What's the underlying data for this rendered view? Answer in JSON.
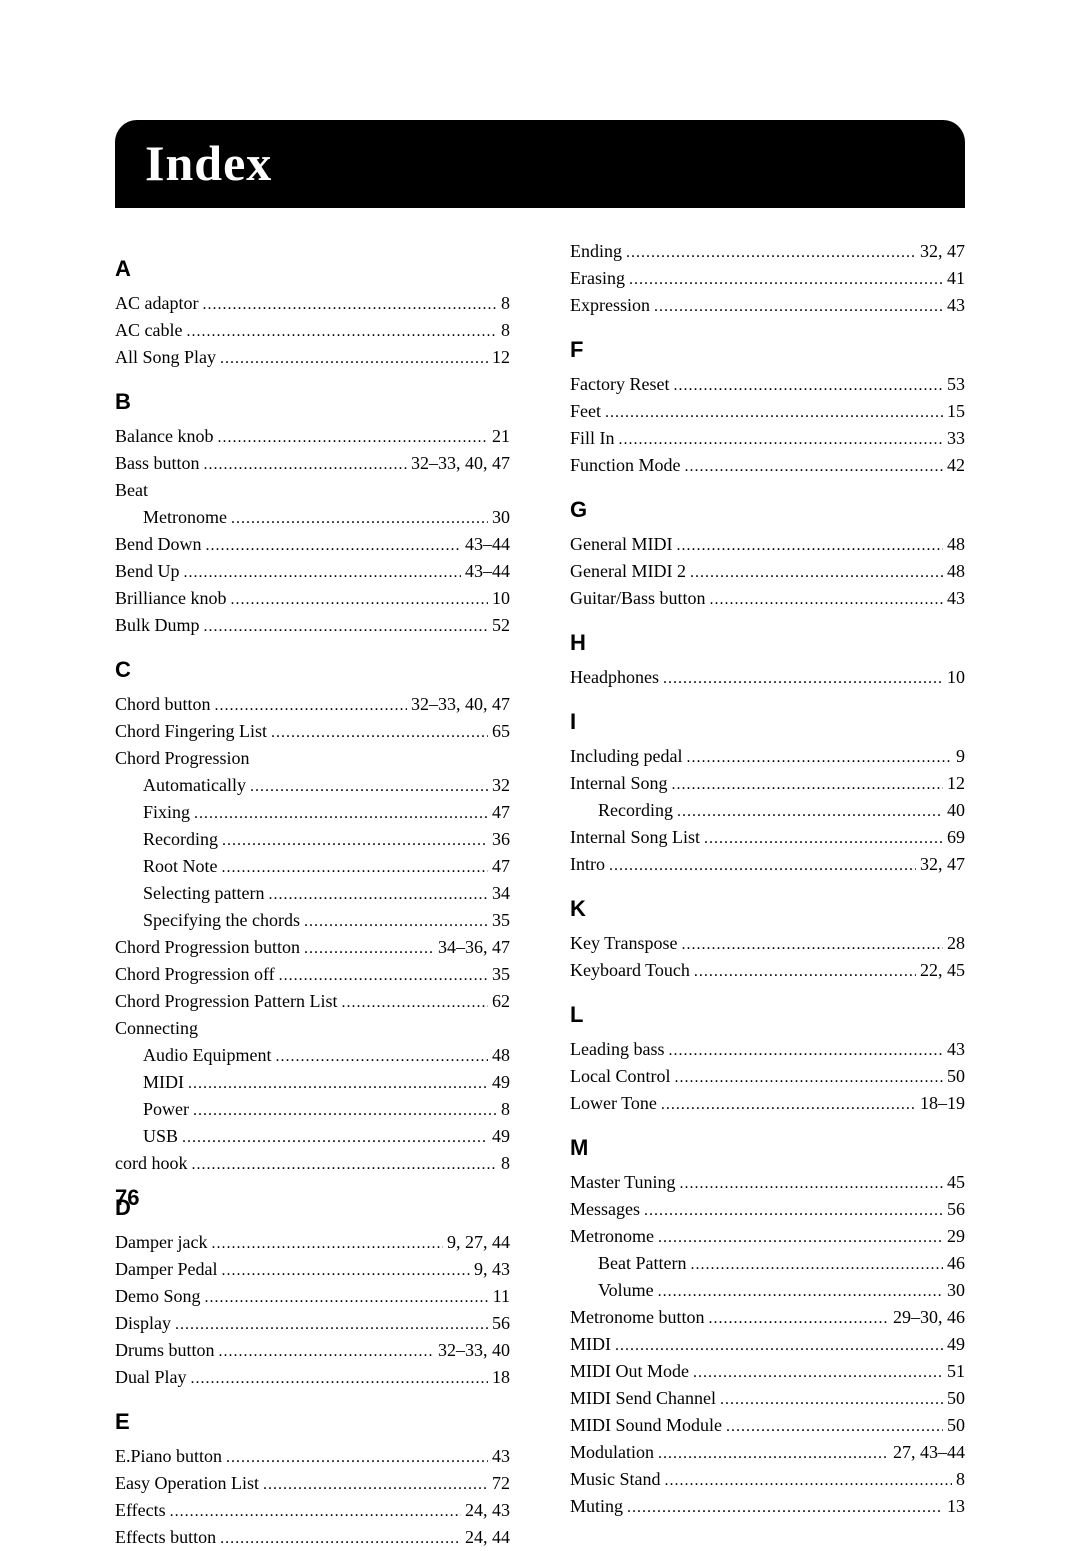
{
  "title": "Index",
  "page_number": "76",
  "columns": [
    {
      "sections": [
        {
          "letter": "A",
          "entries": [
            {
              "label": "AC adaptor",
              "pages": "8"
            },
            {
              "label": "AC cable",
              "pages": "8"
            },
            {
              "label": "All Song Play",
              "pages": "12"
            }
          ]
        },
        {
          "letter": "B",
          "entries": [
            {
              "label": "Balance knob",
              "pages": "21"
            },
            {
              "label": "Bass button",
              "pages": "32–33, 40, 47"
            },
            {
              "label": "Beat",
              "header": true
            },
            {
              "label": "Metronome",
              "pages": "30",
              "sub": true
            },
            {
              "label": "Bend Down",
              "pages": "43–44"
            },
            {
              "label": "Bend Up",
              "pages": "43–44"
            },
            {
              "label": "Brilliance knob",
              "pages": "10"
            },
            {
              "label": "Bulk Dump",
              "pages": "52"
            }
          ]
        },
        {
          "letter": "C",
          "entries": [
            {
              "label": "Chord button",
              "pages": "32–33, 40, 47"
            },
            {
              "label": "Chord Fingering List",
              "pages": "65"
            },
            {
              "label": "Chord Progression",
              "header": true
            },
            {
              "label": "Automatically",
              "pages": "32",
              "sub": true
            },
            {
              "label": "Fixing",
              "pages": "47",
              "sub": true
            },
            {
              "label": "Recording",
              "pages": "36",
              "sub": true
            },
            {
              "label": "Root Note",
              "pages": "47",
              "sub": true
            },
            {
              "label": "Selecting pattern",
              "pages": "34",
              "sub": true
            },
            {
              "label": "Specifying the chords",
              "pages": "35",
              "sub": true
            },
            {
              "label": "Chord Progression button",
              "pages": "34–36, 47"
            },
            {
              "label": "Chord Progression off",
              "pages": "35"
            },
            {
              "label": "Chord Progression Pattern List",
              "pages": "62"
            },
            {
              "label": "Connecting",
              "header": true
            },
            {
              "label": "Audio Equipment",
              "pages": "48",
              "sub": true
            },
            {
              "label": "MIDI",
              "pages": "49",
              "sub": true
            },
            {
              "label": "Power",
              "pages": "8",
              "sub": true
            },
            {
              "label": "USB",
              "pages": "49",
              "sub": true
            },
            {
              "label": "cord hook",
              "pages": "8"
            }
          ]
        },
        {
          "letter": "D",
          "entries": [
            {
              "label": "Damper jack",
              "pages": "9, 27, 44"
            },
            {
              "label": "Damper Pedal",
              "pages": "9, 43"
            },
            {
              "label": "Demo Song",
              "pages": "11"
            },
            {
              "label": "Display",
              "pages": "56"
            },
            {
              "label": "Drums button",
              "pages": "32–33, 40"
            },
            {
              "label": "Dual Play",
              "pages": "18"
            }
          ]
        },
        {
          "letter": "E",
          "entries": [
            {
              "label": "E.Piano button",
              "pages": "43"
            },
            {
              "label": "Easy Operation List",
              "pages": "72"
            },
            {
              "label": "Effects",
              "pages": "24, 43"
            },
            {
              "label": "Effects button",
              "pages": "24, 44"
            }
          ]
        }
      ]
    },
    {
      "sections": [
        {
          "entries": [
            {
              "label": "Ending",
              "pages": "32, 47"
            },
            {
              "label": "Erasing",
              "pages": "41"
            },
            {
              "label": "Expression",
              "pages": "43"
            }
          ]
        },
        {
          "letter": "F",
          "entries": [
            {
              "label": "Factory Reset",
              "pages": "53"
            },
            {
              "label": "Feet",
              "pages": "15"
            },
            {
              "label": "Fill In",
              "pages": "33"
            },
            {
              "label": "Function Mode",
              "pages": "42"
            }
          ]
        },
        {
          "letter": "G",
          "entries": [
            {
              "label": "General MIDI",
              "pages": "48"
            },
            {
              "label": "General MIDI 2",
              "pages": "48"
            },
            {
              "label": "Guitar/Bass button",
              "pages": "43"
            }
          ]
        },
        {
          "letter": "H",
          "entries": [
            {
              "label": "Headphones",
              "pages": "10"
            }
          ]
        },
        {
          "letter": "I",
          "entries": [
            {
              "label": "Including pedal",
              "pages": "9"
            },
            {
              "label": "Internal Song",
              "pages": "12"
            },
            {
              "label": "Recording",
              "pages": "40",
              "sub": true
            },
            {
              "label": "Internal Song List",
              "pages": "69"
            },
            {
              "label": "Intro",
              "pages": "32, 47"
            }
          ]
        },
        {
          "letter": "K",
          "entries": [
            {
              "label": "Key Transpose",
              "pages": "28"
            },
            {
              "label": "Keyboard Touch",
              "pages": "22, 45"
            }
          ]
        },
        {
          "letter": "L",
          "entries": [
            {
              "label": "Leading bass",
              "pages": "43"
            },
            {
              "label": "Local Control",
              "pages": "50"
            },
            {
              "label": "Lower Tone",
              "pages": "18–19"
            }
          ]
        },
        {
          "letter": "M",
          "entries": [
            {
              "label": "Master Tuning",
              "pages": "45"
            },
            {
              "label": "Messages",
              "pages": "56"
            },
            {
              "label": "Metronome",
              "pages": "29"
            },
            {
              "label": "Beat Pattern",
              "pages": "46",
              "sub": true
            },
            {
              "label": "Volume",
              "pages": "30",
              "sub": true
            },
            {
              "label": "Metronome button",
              "pages": "29–30, 46"
            },
            {
              "label": "MIDI",
              "pages": "49"
            },
            {
              "label": "MIDI Out Mode",
              "pages": "51"
            },
            {
              "label": "MIDI Send Channel",
              "pages": "50"
            },
            {
              "label": "MIDI Sound Module",
              "pages": "50"
            },
            {
              "label": "Modulation",
              "pages": "27, 43–44"
            },
            {
              "label": "Music Stand",
              "pages": "8"
            },
            {
              "label": "Muting",
              "pages": "13"
            }
          ]
        }
      ]
    }
  ]
}
